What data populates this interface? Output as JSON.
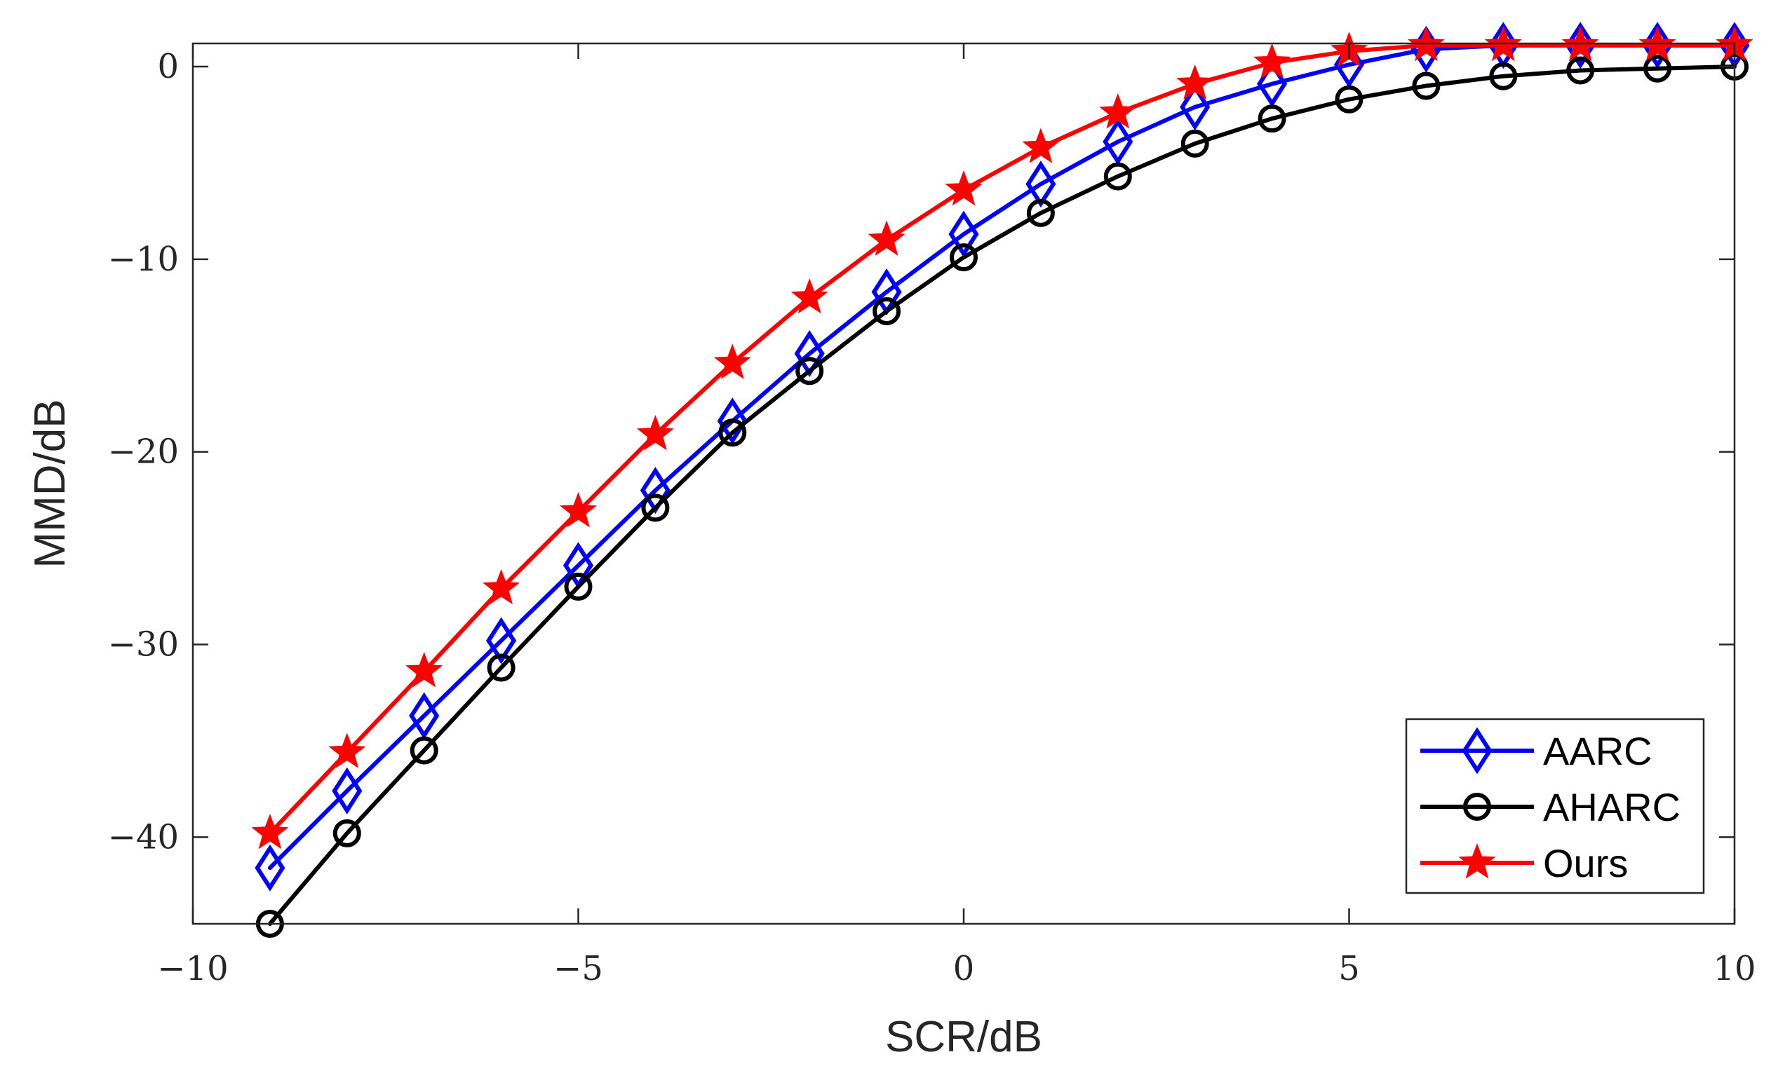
{
  "chart_data": {
    "type": "line",
    "xlabel": "SCR/dB",
    "ylabel": "MMD/dB",
    "xlim": [
      -10,
      10
    ],
    "ylim": [
      -44.5,
      1.2
    ],
    "xticks": [
      -10,
      -5,
      0,
      5,
      10
    ],
    "yticks": [
      0,
      -10,
      -20,
      -30,
      -40
    ],
    "xtick_labels": [
      "−10",
      "−5",
      "0",
      "5",
      "10"
    ],
    "ytick_labels": [
      "0",
      "−10",
      "−20",
      "−30",
      "−40"
    ],
    "grid": false,
    "legend_position": "bottom-right",
    "x": [
      -9,
      -8,
      -7,
      -6,
      -5,
      -4,
      -3,
      -2,
      -1,
      0,
      1,
      2,
      3,
      4,
      5,
      6,
      7,
      8,
      9,
      10
    ],
    "series": [
      {
        "name": "AARC",
        "color": "#0000ff",
        "marker": "diamond",
        "values": [
          -41.6,
          -37.6,
          -33.7,
          -29.8,
          -25.9,
          -22.0,
          -18.4,
          -14.9,
          -11.7,
          -8.7,
          -6.1,
          -3.9,
          -2.1,
          -0.9,
          0.1,
          0.9,
          1.1,
          1.1,
          1.1,
          1.1
        ]
      },
      {
        "name": "AHARC",
        "color": "#000000",
        "marker": "circle",
        "values": [
          -44.5,
          -39.8,
          -35.5,
          -31.2,
          -27.0,
          -22.9,
          -19.0,
          -15.8,
          -12.7,
          -9.9,
          -7.6,
          -5.7,
          -4.0,
          -2.7,
          -1.7,
          -1.0,
          -0.5,
          -0.2,
          -0.1,
          0.0
        ]
      },
      {
        "name": "Ours",
        "color": "#ff0000",
        "marker": "star",
        "values": [
          -39.8,
          -35.6,
          -31.4,
          -27.1,
          -23.1,
          -19.1,
          -15.4,
          -12.0,
          -9.0,
          -6.4,
          -4.2,
          -2.4,
          -0.9,
          0.2,
          0.8,
          1.1,
          1.1,
          1.1,
          1.1,
          1.1
        ]
      }
    ]
  }
}
